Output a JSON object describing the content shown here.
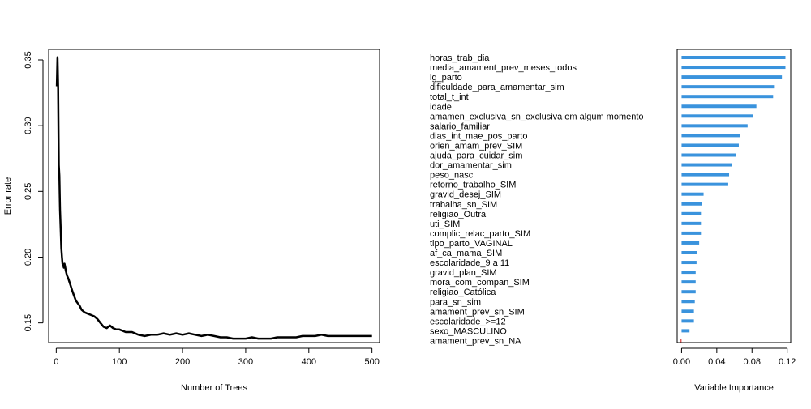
{
  "chart_data": [
    {
      "type": "line",
      "title": "",
      "xlabel": "Number of Trees",
      "ylabel": "Error rate",
      "xlim": [
        -12,
        512
      ],
      "ylim": [
        0.135,
        0.358
      ],
      "xticks": [
        0,
        100,
        200,
        300,
        400,
        500
      ],
      "yticks": [
        0.15,
        0.2,
        0.25,
        0.3,
        0.35
      ],
      "ytick_labels": [
        "0.15",
        "0.20",
        "0.25",
        "0.30",
        "0.35"
      ],
      "grid": false,
      "color": "#000000",
      "x": [
        1,
        2,
        3,
        4,
        5,
        6,
        7,
        8,
        9,
        10,
        11,
        12,
        13,
        14,
        15,
        17,
        19,
        21,
        23,
        25,
        28,
        31,
        34,
        37,
        40,
        45,
        50,
        55,
        60,
        65,
        70,
        75,
        80,
        85,
        90,
        95,
        100,
        110,
        120,
        130,
        140,
        150,
        160,
        170,
        180,
        190,
        200,
        210,
        220,
        230,
        240,
        250,
        260,
        270,
        280,
        290,
        300,
        310,
        320,
        330,
        340,
        350,
        360,
        370,
        380,
        390,
        400,
        410,
        420,
        430,
        440,
        450,
        460,
        470,
        480,
        490,
        500
      ],
      "y": [
        0.33,
        0.352,
        0.328,
        0.27,
        0.262,
        0.236,
        0.222,
        0.207,
        0.2,
        0.195,
        0.194,
        0.192,
        0.195,
        0.193,
        0.19,
        0.186,
        0.184,
        0.181,
        0.178,
        0.175,
        0.171,
        0.167,
        0.165,
        0.163,
        0.16,
        0.158,
        0.157,
        0.156,
        0.155,
        0.153,
        0.15,
        0.147,
        0.146,
        0.148,
        0.146,
        0.145,
        0.145,
        0.143,
        0.143,
        0.141,
        0.14,
        0.141,
        0.141,
        0.142,
        0.141,
        0.142,
        0.141,
        0.142,
        0.141,
        0.14,
        0.141,
        0.14,
        0.139,
        0.139,
        0.138,
        0.138,
        0.138,
        0.139,
        0.138,
        0.138,
        0.138,
        0.139,
        0.139,
        0.139,
        0.139,
        0.14,
        0.14,
        0.14,
        0.141,
        0.14,
        0.14,
        0.14,
        0.14,
        0.14,
        0.14,
        0.14,
        0.14
      ]
    },
    {
      "type": "bar",
      "orientation": "horizontal",
      "title": "",
      "xlabel": "Variable Importance",
      "ylabel": "",
      "xlim": [
        -0.005,
        0.124
      ],
      "xticks": [
        0,
        0.04,
        0.08,
        0.12
      ],
      "xtick_labels": [
        "0.00",
        "0.04",
        "0.08",
        "0.12"
      ],
      "grid": false,
      "positive_color": "#3a93dd",
      "negative_color": "#e05a5a",
      "categories": [
        "horas_trab_dia",
        "media_amament_prev_meses_todos",
        "ig_parto",
        "dificuldade_para_amamentar_sim",
        "total_t_int",
        "idade",
        "amamen_exclusiva_sn_exclusiva em algum momento",
        "salario_familiar",
        "dias_int_mae_pos_parto",
        "orien_amam_prev_SIM",
        "ajuda_para_cuidar_sim",
        "dor_amamentar_sim",
        "peso_nasc",
        "retorno_trabalho_SIM",
        "gravid_desej_SIM",
        "trabalha_sn_SIM",
        "religiao_Outra",
        "uti_SIM",
        "complic_relac_parto_SIM",
        "tipo_parto_VAGINAL",
        "af_ca_mama_SIM",
        "escolaridade_9 a 11",
        "gravid_plan_SIM",
        "mora_com_compan_SIM",
        "religiao_Católica",
        "para_sn_sim",
        "amament_prev_sn_SIM",
        "escolaridade_>=12",
        "sexo_MASCULINO",
        "amament_prev_sn_NA"
      ],
      "values": [
        0.118,
        0.118,
        0.114,
        0.105,
        0.104,
        0.085,
        0.081,
        0.075,
        0.066,
        0.065,
        0.062,
        0.057,
        0.054,
        0.053,
        0.025,
        0.023,
        0.022,
        0.022,
        0.022,
        0.02,
        0.018,
        0.017,
        0.016,
        0.016,
        0.016,
        0.015,
        0.014,
        0.014,
        0.009,
        -0.002
      ]
    }
  ]
}
